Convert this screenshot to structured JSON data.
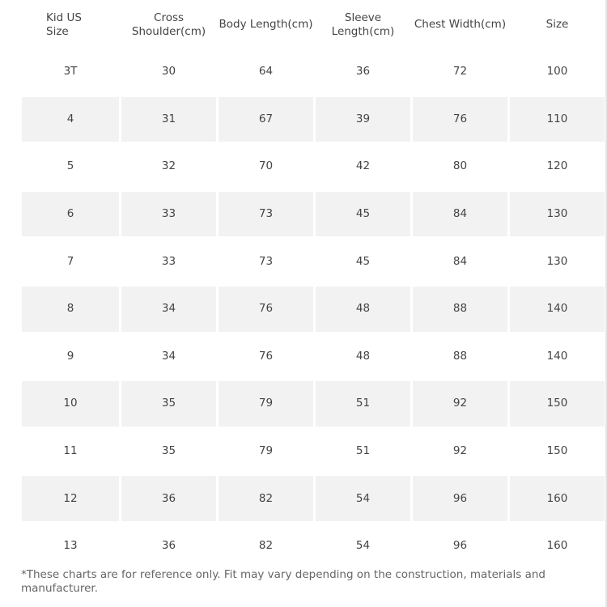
{
  "table": {
    "headers": [
      "Kid US\nSize",
      "Cross\nShoulder(cm)",
      "Body Length(cm)",
      "Sleeve\nLength(cm)",
      "Chest Width(cm)",
      "Size"
    ],
    "rows": [
      [
        "3T",
        "30",
        "64",
        "36",
        "72",
        "100"
      ],
      [
        "4",
        "31",
        "67",
        "39",
        "76",
        "110"
      ],
      [
        "5",
        "32",
        "70",
        "42",
        "80",
        "120"
      ],
      [
        "6",
        "33",
        "73",
        "45",
        "84",
        "130"
      ],
      [
        "7",
        "33",
        "73",
        "45",
        "84",
        "130"
      ],
      [
        "8",
        "34",
        "76",
        "48",
        "88",
        "140"
      ],
      [
        "9",
        "34",
        "76",
        "48",
        "88",
        "140"
      ],
      [
        "10",
        "35",
        "79",
        "51",
        "92",
        "150"
      ],
      [
        "11",
        "35",
        "79",
        "51",
        "92",
        "150"
      ],
      [
        "12",
        "36",
        "82",
        "54",
        "96",
        "160"
      ],
      [
        "13",
        "36",
        "82",
        "54",
        "96",
        "160"
      ]
    ]
  },
  "footnote": "*These charts are for reference only. Fit may vary depending on the construction, materials and manufacturer.",
  "colors": {
    "text": "#444444",
    "alt_row": "#f2f2f2",
    "background": "#ffffff"
  }
}
